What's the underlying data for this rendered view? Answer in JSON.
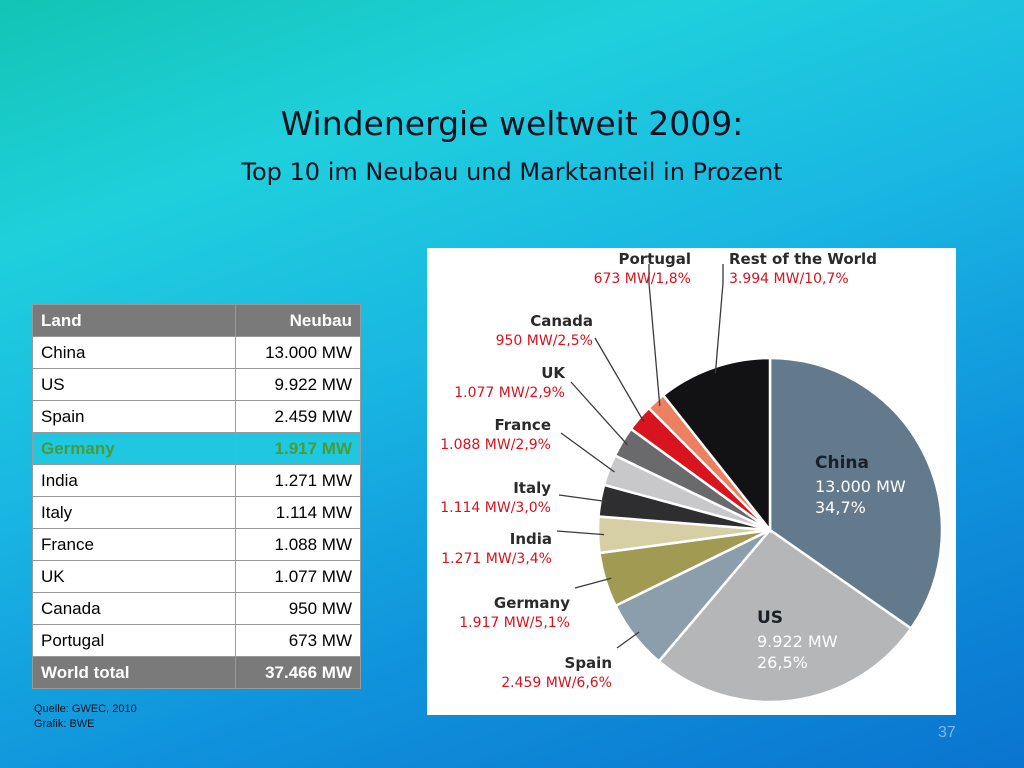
{
  "slide": {
    "title": "Windenergie weltweit 2009:",
    "subtitle": "Top 10 im Neubau und Marktanteil in Prozent",
    "source_line1": "Quelle: GWEC, 2010",
    "source_line2": "Grafik: BWE",
    "page_number": "37"
  },
  "table": {
    "headers": [
      "Land",
      "Neubau"
    ],
    "rows": [
      {
        "land": "China",
        "neubau": "13.000 MW"
      },
      {
        "land": "US",
        "neubau": "9.922 MW"
      },
      {
        "land": "Spain",
        "neubau": "2.459 MW"
      },
      {
        "land": "Germany",
        "neubau": "1.917 MW"
      },
      {
        "land": "India",
        "neubau": "1.271 MW"
      },
      {
        "land": "Italy",
        "neubau": "1.114 MW"
      },
      {
        "land": "France",
        "neubau": "1.088 MW"
      },
      {
        "land": "UK",
        "neubau": "1.077 MW"
      },
      {
        "land": "Canada",
        "neubau": "950 MW"
      },
      {
        "land": "Portugal",
        "neubau": "673 MW"
      }
    ],
    "total": {
      "land": "World total",
      "neubau": "37.466 MW"
    }
  },
  "chart_data": {
    "type": "pie",
    "unit": "MW",
    "start_angle_deg": 0,
    "direction": "clockwise",
    "slices": [
      {
        "name": "China",
        "value": 13000,
        "percent": 34.7,
        "label": "13.000 MW",
        "percent_label": "34,7%",
        "color": "#627a8c"
      },
      {
        "name": "US",
        "value": 9922,
        "percent": 26.5,
        "label": "9.922 MW",
        "percent_label": "26,5%",
        "color": "#b5b6b8"
      },
      {
        "name": "Spain",
        "value": 2459,
        "percent": 6.6,
        "label": "2.459 MW/6,6%",
        "color": "#8c9eab"
      },
      {
        "name": "Germany",
        "value": 1917,
        "percent": 5.1,
        "label": "1.917 MW/5,1%",
        "color": "#a09a52"
      },
      {
        "name": "India",
        "value": 1271,
        "percent": 3.4,
        "label": "1.271 MW/3,4%",
        "color": "#d6cfa6"
      },
      {
        "name": "Italy",
        "value": 1114,
        "percent": 3.0,
        "label": "1.114 MW/3,0%",
        "color": "#2e2e30"
      },
      {
        "name": "France",
        "value": 1088,
        "percent": 2.9,
        "label": "1.088 MW/2,9%",
        "color": "#c8c8ca"
      },
      {
        "name": "UK",
        "value": 1077,
        "percent": 2.9,
        "label": "1.077 MW/2,9%",
        "color": "#6a6a6c"
      },
      {
        "name": "Canada",
        "value": 950,
        "percent": 2.5,
        "label": "950 MW/2,5%",
        "color": "#d8141e"
      },
      {
        "name": "Portugal",
        "value": 673,
        "percent": 1.8,
        "label": "673 MW/1,8%",
        "color": "#ec8060"
      },
      {
        "name": "Rest of the World",
        "value": 3994,
        "percent": 10.7,
        "label": "3.994 MW/10,7%",
        "color": "#121214"
      }
    ]
  }
}
